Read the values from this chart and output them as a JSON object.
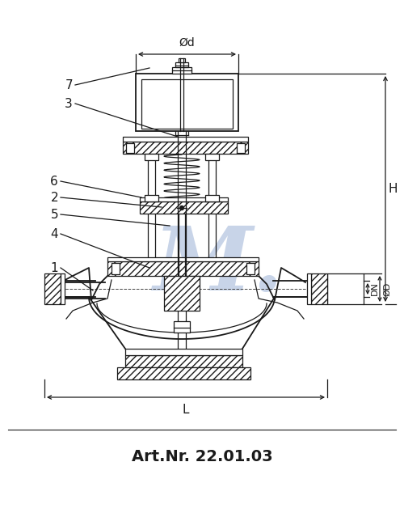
{
  "title": "Art.Nr. 22.01.03",
  "bg_color": "#ffffff",
  "line_color": "#1a1a1a",
  "watermark_color": "#c8d4e8",
  "dim_labels": [
    "Ød",
    "H",
    "L",
    "DN",
    "ØD"
  ],
  "label_numbers": [
    "1",
    "2",
    "3",
    "4",
    "5",
    "6",
    "7"
  ],
  "title_fontsize": 14,
  "label_fontsize": 11
}
